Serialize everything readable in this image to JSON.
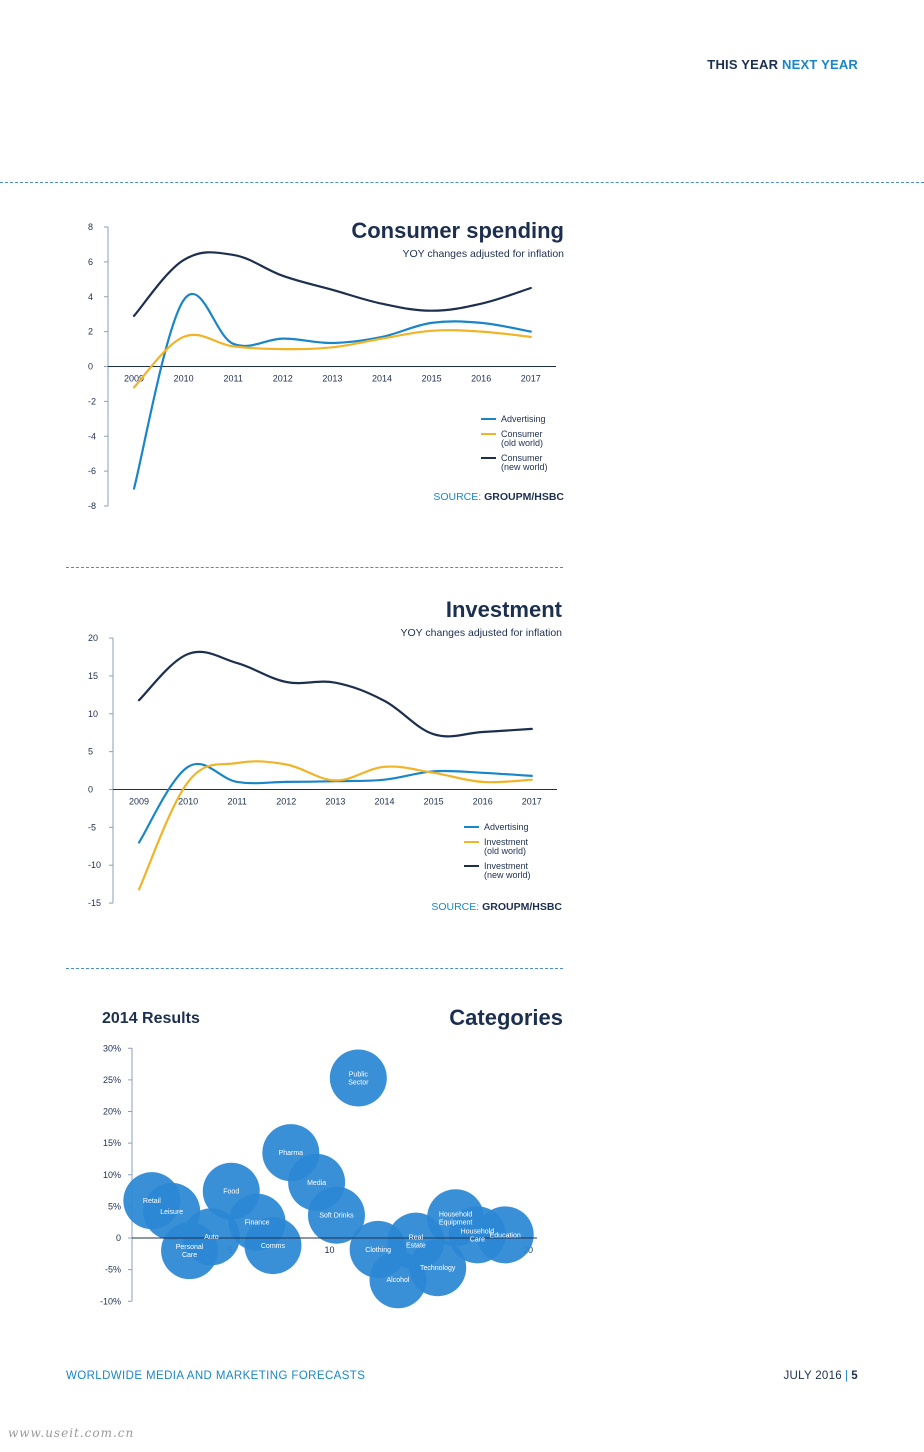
{
  "header": {
    "this_year": "THIS YEAR",
    "next_year": "NEXT YEAR"
  },
  "colors": {
    "navy": "#1d2f4f",
    "blue": "#1a86c6",
    "orange": "#f0b429",
    "bubble": "#2b88d4"
  },
  "chart_data": [
    {
      "type": "line",
      "title": "Consumer spending",
      "subtitle": "YOY changes adjusted for inflation",
      "x": [
        "2009",
        "2010",
        "2011",
        "2012",
        "2013",
        "2014",
        "2015",
        "2016",
        "2017"
      ],
      "ylim": [
        -8,
        8
      ],
      "yticks": [
        "8",
        "6",
        "4",
        "2",
        "0",
        "-2",
        "-4",
        "-6",
        "-8"
      ],
      "series": [
        {
          "name": "Advertising",
          "label": [
            "Advertising"
          ],
          "color": "#1a86c6",
          "values": [
            -7.0,
            3.8,
            1.3,
            1.6,
            1.35,
            1.7,
            2.5,
            2.5,
            2.0
          ]
        },
        {
          "name": "Consumer (old world)",
          "label": [
            "Consumer",
            "(old world)"
          ],
          "color": "#f0b429",
          "values": [
            -1.2,
            1.7,
            1.15,
            1.0,
            1.1,
            1.6,
            2.05,
            2.0,
            1.7
          ]
        },
        {
          "name": "Consumer (new world)",
          "label": [
            "Consumer",
            "(new world)"
          ],
          "color": "#1d2f4f",
          "values": [
            2.9,
            6.1,
            6.4,
            5.2,
            4.4,
            3.6,
            3.2,
            3.6,
            4.5
          ]
        }
      ],
      "source_prefix": "SOURCE:",
      "source": "GROUPM/HSBC"
    },
    {
      "type": "line",
      "title": "Investment",
      "subtitle": "YOY changes adjusted for inflation",
      "x": [
        "2009",
        "2010",
        "2011",
        "2012",
        "2013",
        "2014",
        "2015",
        "2016",
        "2017"
      ],
      "ylim": [
        -15,
        20
      ],
      "yticks": [
        "20",
        "15",
        "10",
        "5",
        "0",
        "-5",
        "-10",
        "-15"
      ],
      "series": [
        {
          "name": "Advertising",
          "label": [
            "Advertising"
          ],
          "color": "#1a86c6",
          "values": [
            -7.0,
            3.0,
            1.0,
            1.0,
            1.1,
            1.3,
            2.4,
            2.2,
            1.8
          ]
        },
        {
          "name": "Investment (old world)",
          "label": [
            "Investment",
            "(old world)"
          ],
          "color": "#f0b429",
          "values": [
            -13.2,
            1.0,
            3.5,
            3.3,
            1.2,
            3.0,
            2.2,
            1.0,
            1.3
          ]
        },
        {
          "name": "Investment (new world)",
          "label": [
            "Investment",
            "(new world)"
          ],
          "color": "#1d2f4f",
          "values": [
            11.8,
            17.9,
            16.7,
            14.2,
            14.1,
            11.7,
            7.3,
            7.6,
            8.0
          ]
        }
      ],
      "source_prefix": "SOURCE:",
      "source": "GROUPM/HSBC"
    },
    {
      "type": "scatter",
      "subtype": "bubble",
      "title": "Categories",
      "subtitle": "2014 Results",
      "xticks": [
        "5",
        "10",
        "20"
      ],
      "xtick_values": [
        5,
        10,
        20
      ],
      "yticks": [
        "30%",
        "25%",
        "20%",
        "15%",
        "10%",
        "5%",
        "0",
        "-5%",
        "-10%"
      ],
      "ylim": [
        -10,
        30
      ],
      "xlim": [
        -0.5,
        20
      ],
      "points": [
        {
          "name": "Public Sector",
          "label": [
            "Public",
            "Sector"
          ],
          "x": 11.3,
          "y": 25.3
        },
        {
          "name": "Pharma",
          "label": [
            "Pharma"
          ],
          "x": 7.9,
          "y": 13.5
        },
        {
          "name": "Media",
          "label": [
            "Media"
          ],
          "x": 9.2,
          "y": 8.8
        },
        {
          "name": "Food",
          "label": [
            "Food"
          ],
          "x": 4.9,
          "y": 7.4
        },
        {
          "name": "Retail",
          "label": [
            "Retail"
          ],
          "x": 0.9,
          "y": 5.9
        },
        {
          "name": "Leisure",
          "label": [
            "Leisure"
          ],
          "x": 1.9,
          "y": 4.2
        },
        {
          "name": "Finance",
          "label": [
            "Finance"
          ],
          "x": 6.2,
          "y": 2.5
        },
        {
          "name": "Soft Drinks",
          "label": [
            "Soft Drinks"
          ],
          "x": 10.2,
          "y": 3.6
        },
        {
          "name": "Auto",
          "label": [
            "Auto"
          ],
          "x": 3.9,
          "y": 0.2
        },
        {
          "name": "Personal Care",
          "label": [
            "Personal",
            "Care"
          ],
          "x": 2.8,
          "y": -2.0
        },
        {
          "name": "Comms",
          "label": [
            "Comms"
          ],
          "x": 7.0,
          "y": -1.2
        },
        {
          "name": "Clothing",
          "label": [
            "Clothing"
          ],
          "x": 12.3,
          "y": -1.8
        },
        {
          "name": "Alcohol",
          "label": [
            "Alcohol"
          ],
          "x": 13.3,
          "y": -6.6
        },
        {
          "name": "Real Estate",
          "label": [
            "Real",
            "Estate"
          ],
          "x": 14.2,
          "y": -0.5
        },
        {
          "name": "Technology",
          "label": [
            "Technology"
          ],
          "x": 15.3,
          "y": -4.7
        },
        {
          "name": "Household Equipment",
          "label": [
            "Household",
            "Equipment"
          ],
          "x": 16.2,
          "y": 3.2
        },
        {
          "name": "Household Care",
          "label": [
            "Household",
            "Care"
          ],
          "x": 17.3,
          "y": 0.5
        },
        {
          "name": "Education",
          "label": [
            "Education"
          ],
          "x": 18.7,
          "y": 0.5
        }
      ]
    }
  ],
  "footer": {
    "left": "WORLDWIDE MEDIA AND MARKETING FORECASTS",
    "date": "JULY 2016",
    "separator": "|",
    "page": "5"
  },
  "watermark": "www.useit.com.cn"
}
